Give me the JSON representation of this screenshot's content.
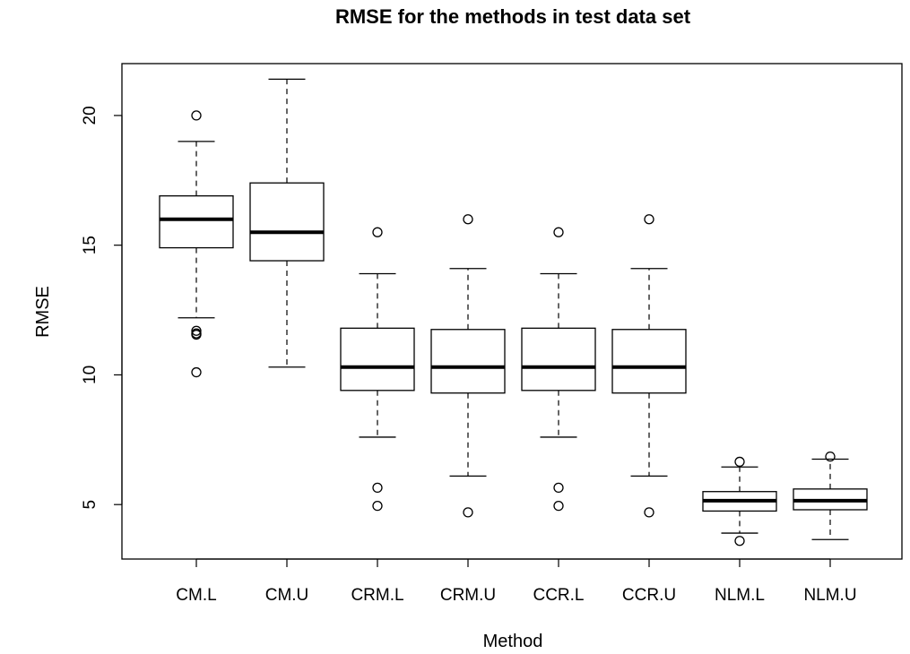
{
  "chart_data": {
    "type": "box",
    "title": "RMSE for the methods in test data set",
    "xlabel": "Method",
    "ylabel": "RMSE",
    "ylim": [
      2.9,
      22.0
    ],
    "yticks": [
      5,
      10,
      15,
      20
    ],
    "grid": false,
    "categories": [
      "CM.L",
      "CM.U",
      "CRM.L",
      "CRM.U",
      "CCR.L",
      "CCR.U",
      "NLM.L",
      "NLM.U"
    ],
    "boxes": [
      {
        "category": "CM.L",
        "whisker_low": 12.2,
        "q1": 14.9,
        "median": 16.0,
        "q3": 16.9,
        "whisker_high": 19.0,
        "outliers": [
          20.0,
          11.7,
          11.6,
          11.55,
          10.1
        ]
      },
      {
        "category": "CM.U",
        "whisker_low": 10.3,
        "q1": 14.4,
        "median": 15.5,
        "q3": 17.4,
        "whisker_high": 21.4,
        "outliers": []
      },
      {
        "category": "CRM.L",
        "whisker_low": 7.6,
        "q1": 9.4,
        "median": 10.3,
        "q3": 11.8,
        "whisker_high": 13.9,
        "outliers": [
          15.5,
          5.65,
          4.95
        ]
      },
      {
        "category": "CRM.U",
        "whisker_low": 6.1,
        "q1": 9.3,
        "median": 10.3,
        "q3": 11.75,
        "whisker_high": 14.1,
        "outliers": [
          16.0,
          4.7
        ]
      },
      {
        "category": "CCR.L",
        "whisker_low": 7.6,
        "q1": 9.4,
        "median": 10.3,
        "q3": 11.8,
        "whisker_high": 13.9,
        "outliers": [
          15.5,
          5.65,
          4.95
        ]
      },
      {
        "category": "CCR.U",
        "whisker_low": 6.1,
        "q1": 9.3,
        "median": 10.3,
        "q3": 11.75,
        "whisker_high": 14.1,
        "outliers": [
          16.0,
          4.7
        ]
      },
      {
        "category": "NLM.L",
        "whisker_low": 3.9,
        "q1": 4.75,
        "median": 5.15,
        "q3": 5.5,
        "whisker_high": 6.45,
        "outliers": [
          6.65,
          3.6
        ]
      },
      {
        "category": "NLM.U",
        "whisker_low": 3.65,
        "q1": 4.8,
        "median": 5.15,
        "q3": 5.6,
        "whisker_high": 6.75,
        "outliers": [
          6.85
        ]
      }
    ]
  }
}
